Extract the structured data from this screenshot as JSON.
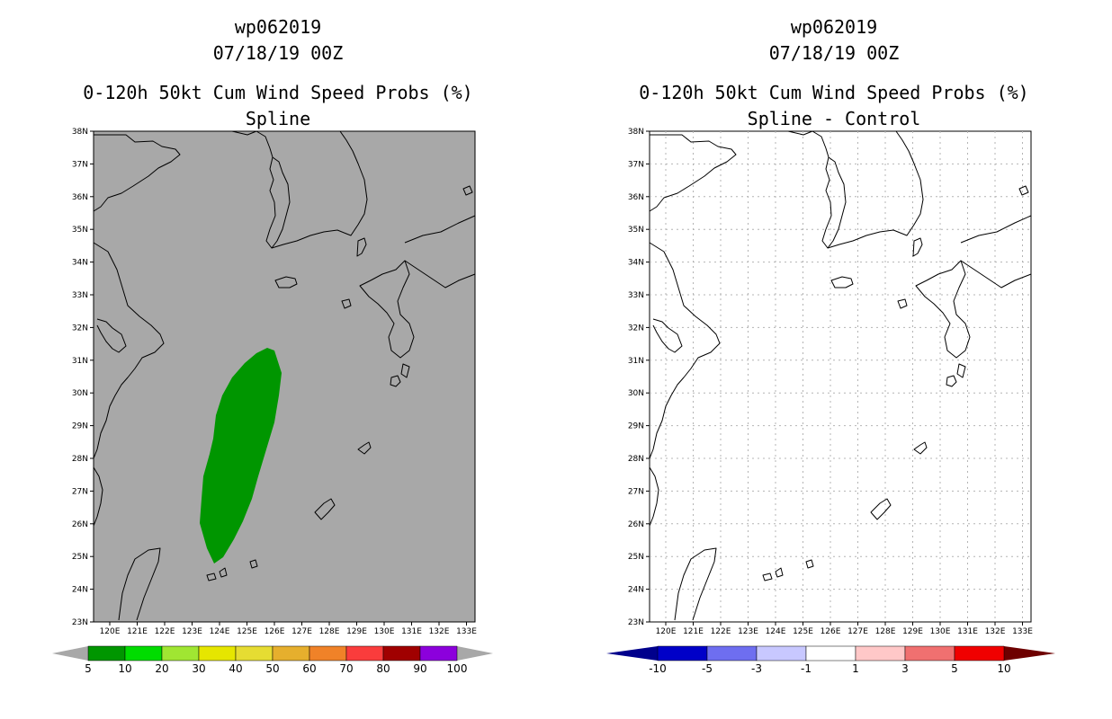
{
  "panels": [
    {
      "id": "left",
      "storm_id": "wp062019",
      "datetime": "07/18/19 00Z",
      "product": "0-120h 50kt Cum Wind Speed Probs (%)",
      "subtitle": "Spline",
      "lat_labels": [
        "38N",
        "37N",
        "36N",
        "35N",
        "34N",
        "33N",
        "32N",
        "31N",
        "30N",
        "29N",
        "28N",
        "27N",
        "26N",
        "25N",
        "24N",
        "23N"
      ],
      "lon_labels": [
        "120E",
        "121E",
        "122E",
        "123E",
        "124E",
        "125E",
        "126E",
        "127E",
        "128E",
        "129E",
        "130E",
        "131E",
        "132E",
        "133E"
      ],
      "map_background": "#a8a8a8",
      "shaded_area": {
        "category": "5-10",
        "color": "#009600"
      },
      "colorbar": {
        "labels": [
          "5",
          "10",
          "20",
          "30",
          "40",
          "50",
          "60",
          "70",
          "80",
          "90",
          "100"
        ],
        "colors": [
          "#009600",
          "#00dc00",
          "#a0e632",
          "#e6e600",
          "#e6dc32",
          "#e6af2d",
          "#f08228",
          "#fa3c3c",
          "#a00000",
          "#8c00dc"
        ],
        "end_color": "#a8a8a8"
      }
    },
    {
      "id": "right",
      "storm_id": "wp062019",
      "datetime": "07/18/19 00Z",
      "product": "0-120h 50kt Cum Wind Speed Probs (%)",
      "subtitle": "Spline - Control",
      "lat_labels": [
        "38N",
        "37N",
        "36N",
        "35N",
        "34N",
        "33N",
        "32N",
        "31N",
        "30N",
        "29N",
        "28N",
        "27N",
        "26N",
        "25N",
        "24N",
        "23N"
      ],
      "lon_labels": [
        "120E",
        "121E",
        "122E",
        "123E",
        "124E",
        "125E",
        "126E",
        "127E",
        "128E",
        "129E",
        "130E",
        "131E",
        "132E",
        "133E"
      ],
      "map_background": "#ffffff",
      "colorbar": {
        "labels": [
          "-10",
          "-5",
          "-3",
          "-1",
          "1",
          "3",
          "5",
          "10"
        ],
        "colors": [
          "#0000c8",
          "#6e6ef0",
          "#c8c8ff",
          "#ffffff",
          "#ffc8c8",
          "#f07070",
          "#f00000"
        ],
        "low_color": "#00008c",
        "high_color": "#6e0000"
      }
    }
  ]
}
